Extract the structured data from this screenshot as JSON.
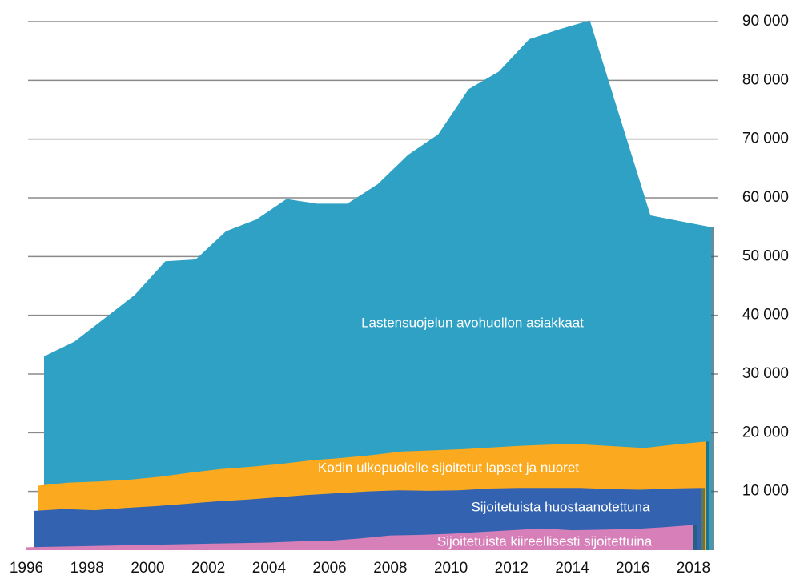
{
  "chart_data": {
    "type": "area",
    "x": [
      1996,
      1997,
      1998,
      1999,
      2000,
      2001,
      2002,
      2003,
      2004,
      2005,
      2006,
      2007,
      2008,
      2009,
      2010,
      2011,
      2012,
      2013,
      2014,
      2015,
      2016,
      2017,
      2018
    ],
    "xlim": [
      1996,
      2018
    ],
    "xticks": [
      1996,
      1998,
      2000,
      2002,
      2004,
      2006,
      2008,
      2010,
      2012,
      2014,
      2016,
      2018
    ],
    "ylim": [
      0,
      90000
    ],
    "yticks": [
      {
        "value": 10000,
        "label": "10 000"
      },
      {
        "value": 20000,
        "label": "20 000"
      },
      {
        "value": 30000,
        "label": "30 000"
      },
      {
        "value": 40000,
        "label": "40 000"
      },
      {
        "value": 50000,
        "label": "50 000"
      },
      {
        "value": 60000,
        "label": "60 000"
      },
      {
        "value": 70000,
        "label": "70 000"
      },
      {
        "value": 80000,
        "label": "80 000"
      },
      {
        "value": 90000,
        "label": "90 000"
      }
    ],
    "grid": true,
    "series": [
      {
        "name": "Lastensuojelun avohuollon asiakkaat",
        "color": "#2ea1c4",
        "values": [
          33000,
          35500,
          39500,
          43500,
          49200,
          49500,
          54300,
          56300,
          59800,
          59000,
          59000,
          62300,
          67300,
          70800,
          78500,
          81500,
          87000,
          88700,
          90200,
          73600,
          57000,
          56000,
          55000
        ]
      },
      {
        "name": "Kodin ulkopuolelle sijoitetut lapset ja nuoret",
        "color": "#fbaa1f",
        "values": [
          11000,
          11500,
          11700,
          12000,
          12500,
          13200,
          13800,
          14200,
          14700,
          15300,
          15700,
          16200,
          16800,
          17000,
          17200,
          17500,
          17800,
          18000,
          18000,
          17700,
          17400,
          18000,
          18500
        ]
      },
      {
        "name": "Sijoitetuista huostaanotettuna",
        "color": "#3262b0",
        "values": [
          6700,
          7000,
          6800,
          7200,
          7500,
          7900,
          8300,
          8600,
          9000,
          9400,
          9700,
          10000,
          10200,
          10100,
          10200,
          10500,
          10600,
          10600,
          10600,
          10400,
          10300,
          10500,
          10600
        ]
      },
      {
        "name": "Sijoitetuista kiireellisesti sijoitettuina",
        "color": "#d77fb8",
        "values": [
          500,
          600,
          700,
          800,
          900,
          1000,
          1100,
          1200,
          1300,
          1500,
          1600,
          2000,
          2500,
          2600,
          2800,
          3100,
          3400,
          3700,
          3400,
          3500,
          3600,
          3900,
          4300
        ]
      }
    ]
  }
}
